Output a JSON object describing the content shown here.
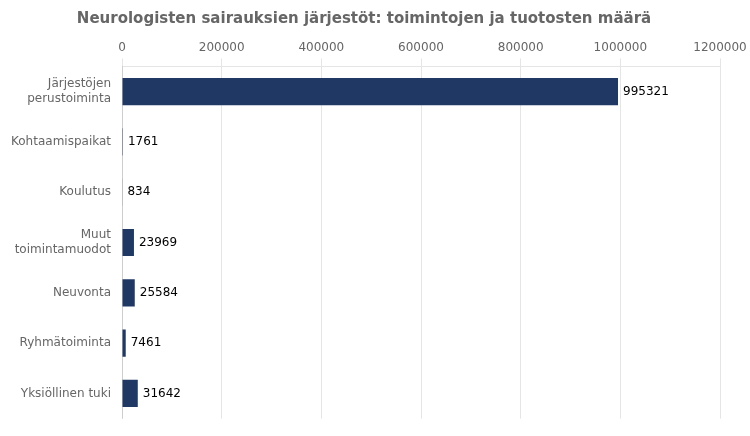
{
  "chart_data": {
    "type": "bar",
    "orientation": "horizontal",
    "title": "Neurologisten sairauksien järjestöt: toimintojen ja tuotosten määrä",
    "categories": [
      "Järjestöjen\nperustoiminta",
      "Kohtaamispaikat",
      "Koulutus",
      "Muut\ntoimintamuodot",
      "Neuvonta",
      "Ryhmätoiminta",
      "Yksiöllinen tuki"
    ],
    "values": [
      995321,
      1761,
      834,
      23969,
      25584,
      7461,
      31642
    ],
    "color": "#1F3864",
    "xlim": [
      0,
      1200000
    ],
    "xticks": [
      0,
      200000,
      400000,
      600000,
      800000,
      1000000,
      1200000
    ],
    "grid": true,
    "data_labels": true,
    "legend": null
  }
}
